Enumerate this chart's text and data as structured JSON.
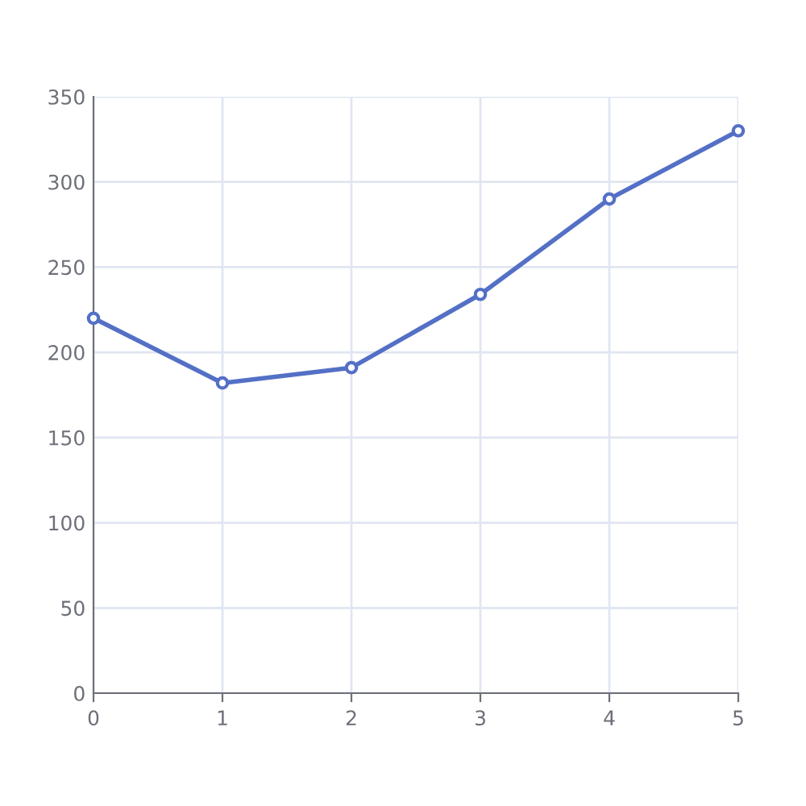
{
  "chart_data": {
    "type": "line",
    "x": [
      0,
      1,
      2,
      3,
      4,
      5
    ],
    "series": [
      {
        "color": "#5470c6",
        "values": [
          220,
          182,
          191,
          234,
          290,
          330
        ]
      }
    ],
    "xlim": [
      0,
      5
    ],
    "xticks": [
      0,
      1,
      2,
      3,
      4,
      5
    ],
    "ylim": [
      0,
      350
    ],
    "yticks": [
      0,
      50,
      100,
      150,
      200,
      250,
      300,
      350
    ],
    "grid": true,
    "marker": "circle",
    "line_style": "solid"
  }
}
